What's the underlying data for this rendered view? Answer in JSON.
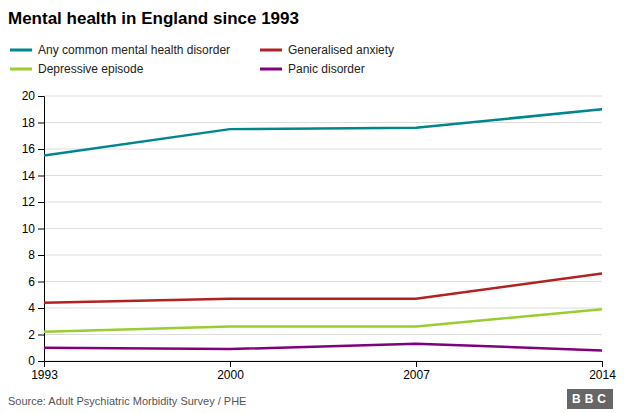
{
  "chart_data": {
    "type": "line",
    "title": "Mental health in England since 1993",
    "x": [
      1993,
      2000,
      2007,
      2014
    ],
    "series": [
      {
        "name": "Any common mental health disorder",
        "color": "#00868B",
        "values": [
          15.5,
          17.5,
          17.6,
          19.0
        ]
      },
      {
        "name": "Generalised anxiety",
        "color": "#B22222",
        "values": [
          4.4,
          4.7,
          4.7,
          6.6
        ]
      },
      {
        "name": "Depressive episode",
        "color": "#9ACD32",
        "values": [
          2.2,
          2.6,
          2.6,
          3.9
        ]
      },
      {
        "name": "Panic disorder",
        "color": "#800080",
        "values": [
          1.0,
          0.9,
          1.3,
          0.8
        ]
      }
    ],
    "xlim": [
      1993,
      2014
    ],
    "xticks": [
      1993,
      2000,
      2007,
      2014
    ],
    "ylim": [
      0,
      20
    ],
    "yticks": [
      0,
      2,
      4,
      6,
      8,
      10,
      12,
      14,
      16,
      18,
      20
    ],
    "grid": true,
    "legend": "top-left",
    "annotations": [
      "Source: Adult Psychiatric Morbidity Survey / PHE",
      "BBC"
    ]
  }
}
